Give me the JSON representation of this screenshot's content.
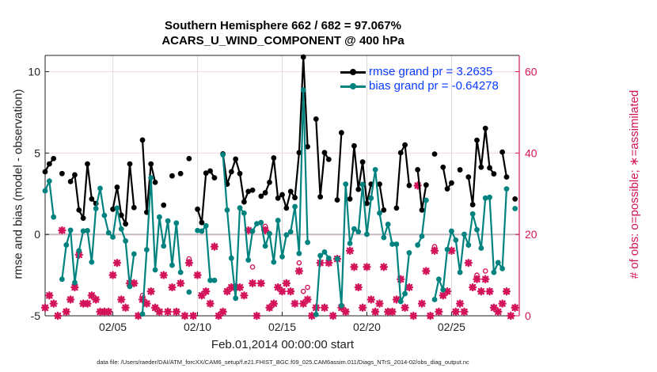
{
  "chart_data": {
    "type": "line",
    "title": [
      "Southern Hemisphere 662 / 682 = 97.067%",
      "ACARS_U_WIND_COMPONENT @ 400 hPa"
    ],
    "xlabel": "Feb.01,2014 00:00:00 start",
    "ylabel_left": "rmse and bias (model - observation)",
    "ylabel_right": "# of obs: o=possible; ∗=assimilated",
    "footer": "data file: /Users/raeder/DAI/ATM_forcXX/CAM6_setup/f.e21.FHIST_BGC.f09_025.CAM6assim.011/Diags_NTrS_2014-02/obs_diag_output.nc",
    "xlim_days": [
      1,
      29
    ],
    "x_start_day": 1,
    "x_step_days": 0.25,
    "ylim_left": [
      -5,
      11
    ],
    "ylim_right": [
      0,
      64
    ],
    "xticks": [
      {
        "day": 5,
        "label": "02/05"
      },
      {
        "day": 10,
        "label": "02/10"
      },
      {
        "day": 15,
        "label": "02/15"
      },
      {
        "day": 20,
        "label": "02/20"
      },
      {
        "day": 25,
        "label": "02/25"
      }
    ],
    "yticks_left": [
      {
        "v": -5,
        "label": "-5"
      },
      {
        "v": 0,
        "label": "0"
      },
      {
        "v": 5,
        "label": "5"
      },
      {
        "v": 10,
        "label": "10"
      }
    ],
    "yticks_right": [
      {
        "v": 0,
        "label": "0"
      },
      {
        "v": 20,
        "label": "20"
      },
      {
        "v": 40,
        "label": "40"
      },
      {
        "v": 60,
        "label": "60"
      }
    ],
    "grid": true,
    "legend": {
      "position": "top-right",
      "entries": [
        "rmse grand pr = 3.2635",
        "bias grand pr = -0.64278"
      ]
    },
    "colors": {
      "rmse": "#000000",
      "bias": "#00827f",
      "obs": "#d4145a",
      "legend_text": "#0a3cff"
    },
    "series": [
      {
        "name": "rmse",
        "values": [
          3.85,
          4.33,
          4.66,
          null,
          3.74,
          null,
          3.25,
          3.66,
          1.5,
          1.0,
          4.33,
          2.18,
          1.9,
          null,
          null,
          null,
          1.55,
          2.9,
          1.18,
          0.65,
          4.33,
          1.65,
          null,
          5.8,
          1.36,
          4.33,
          3.2,
          null,
          1.8,
          null,
          3.6,
          null,
          3.74,
          null,
          4.66,
          null,
          1.55,
          0.73,
          3.77,
          3.9,
          3.48,
          null,
          4.95,
          3.09,
          3.85,
          4.63,
          3.74,
          2.0,
          2.64,
          2.72,
          null,
          2.35,
          2.56,
          3.2,
          4.7,
          2.23,
          2.44,
          1.62,
          2.64,
          2.26,
          5.03,
          10.9,
          5.39,
          null,
          7.09,
          2.31,
          5.03,
          4.61,
          null,
          2.12,
          6.25,
          null,
          2.18,
          5.44,
          2.77,
          4.45,
          1.91,
          3.09,
          null,
          3.09,
          1.5,
          null,
          null,
          1.62,
          5.02,
          5.5,
          3.01,
          null,
          3.98,
          1.5,
          3.04,
          null,
          4.94,
          null,
          4.13,
          2.8,
          3.16,
          null,
          3.97,
          null,
          3.53,
          1.83,
          5.79,
          4.13,
          6.52,
          4.09,
          3.72,
          null,
          5.06,
          3.53,
          null,
          2.18
        ]
      },
      {
        "name": "bias",
        "values": [
          2.68,
          3.28,
          1.07,
          null,
          -2.75,
          -0.65,
          0.26,
          -2.96,
          -1.0,
          0.21,
          0.23,
          -1.7,
          1.59,
          2.83,
          1.17,
          0.1,
          -0.16,
          1.62,
          0.33,
          -0.4,
          -3.2,
          -1.2,
          null,
          -4.89,
          -0.94,
          3.48,
          -2.18,
          1.07,
          -0.71,
          0.83,
          -1.89,
          0.7,
          -2.33,
          null,
          -3.54,
          null,
          0.24,
          0.2,
          0.53,
          -2.82,
          -2.82,
          null,
          4.9,
          1.5,
          -1.46,
          -3.92,
          1.63,
          1.31,
          -1.57,
          0.2,
          0.66,
          0.73,
          -0.71,
          0.05,
          -1.7,
          0.86,
          -1.37,
          -0.03,
          0.16,
          1.71,
          -1.17,
          8.87,
          -0.49,
          null,
          -4.92,
          -1.3,
          -1.08,
          -1.46,
          null,
          -1.5,
          -4.37,
          3.09,
          -0.55,
          0.34,
          0.16,
          3.07,
          0.01,
          2.23,
          3.98,
          1.31,
          -0.19,
          0.62,
          -0.6,
          -0.6,
          -4.12,
          -3.64,
          -1.13,
          null,
          -0.65,
          -0.11,
          2.1,
          null,
          -4.0,
          -2.75,
          -3.4,
          -0.92,
          0.2,
          -0.35,
          -2.33,
          0.01,
          -0.65,
          1.26,
          0.29,
          -0.84,
          2.23,
          2.28,
          -2.33,
          -1.73,
          -2.1,
          2.8,
          null,
          1.59
        ]
      },
      {
        "name": "obs_possible",
        "values": [
          2,
          5,
          3,
          0,
          21,
          1,
          4,
          7,
          15,
          3,
          3,
          5,
          4,
          1,
          1,
          1,
          10,
          13,
          4,
          2,
          8,
          8,
          0,
          5,
          3,
          6,
          2,
          1,
          10,
          1,
          7,
          1,
          8,
          0,
          14,
          0,
          10,
          5,
          6,
          3,
          17,
          0,
          1,
          6,
          7,
          7,
          7,
          5,
          21,
          12,
          0,
          8,
          22,
          2,
          3,
          7,
          6,
          8,
          6,
          3,
          13,
          6,
          7,
          0,
          2,
          13,
          2,
          13,
          0,
          14,
          2,
          1,
          16,
          12,
          7,
          2,
          12,
          4,
          1,
          3,
          12,
          1,
          1,
          4,
          9,
          2,
          7,
          0,
          32,
          3,
          11,
          0,
          17,
          1,
          5,
          6,
          16,
          1,
          3,
          1,
          13,
          7,
          10,
          6,
          11,
          6,
          2,
          1,
          3,
          6,
          0,
          2
        ]
      },
      {
        "name": "obs_assimilated",
        "values": [
          2,
          5,
          3,
          0,
          21,
          1,
          4,
          7,
          15,
          3,
          3,
          5,
          4,
          1,
          1,
          1,
          10,
          13,
          4,
          2,
          8,
          8,
          0,
          4,
          3,
          6,
          2,
          1,
          10,
          1,
          7,
          1,
          8,
          0,
          13,
          0,
          10,
          5,
          6,
          3,
          17,
          0,
          1,
          6,
          7,
          7,
          7,
          5,
          21,
          8,
          0,
          8,
          21,
          2,
          3,
          7,
          6,
          8,
          6,
          3,
          11,
          3,
          4,
          0,
          2,
          13,
          2,
          13,
          0,
          14,
          2,
          1,
          16,
          12,
          7,
          2,
          12,
          4,
          1,
          3,
          12,
          1,
          1,
          4,
          9,
          2,
          7,
          0,
          32,
          3,
          11,
          0,
          16,
          1,
          5,
          6,
          16,
          1,
          3,
          1,
          13,
          7,
          9,
          6,
          9,
          6,
          2,
          1,
          3,
          6,
          0,
          2
        ]
      }
    ]
  }
}
